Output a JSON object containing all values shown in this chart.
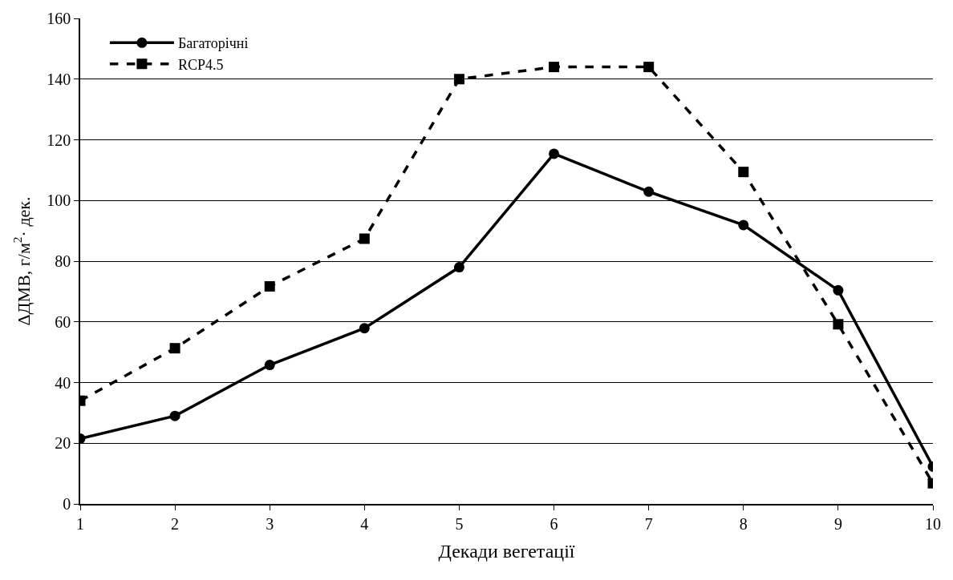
{
  "chart_data": {
    "type": "line",
    "xlabel": "Декади вегетації",
    "ylabel": "ΔДМВ, г/м$^{2}$· дек.",
    "x": [
      1,
      2,
      3,
      4,
      5,
      6,
      7,
      8,
      9,
      10
    ],
    "series": [
      {
        "name": "Багаторічні",
        "color": "#000000",
        "marker": "circle",
        "line_style": "solid",
        "values": [
          21.5,
          29,
          45.8,
          57.9,
          78,
          115.4,
          102.9,
          91.9,
          70.4,
          12.3
        ]
      },
      {
        "name": "RCP4.5",
        "color": "#000000",
        "marker": "square",
        "line_style": "dashed",
        "values": [
          34,
          51.3,
          71.7,
          87.4,
          140,
          144,
          144,
          109.4,
          59.2,
          6.8
        ]
      }
    ],
    "xlim": [
      1,
      10
    ],
    "xticks": [
      1,
      2,
      3,
      4,
      5,
      6,
      7,
      8,
      9,
      10
    ],
    "ylim": [
      0,
      160
    ],
    "yticks": [
      0,
      20,
      40,
      60,
      80,
      100,
      120,
      140,
      160
    ],
    "grid": "y",
    "legend": "top left"
  }
}
